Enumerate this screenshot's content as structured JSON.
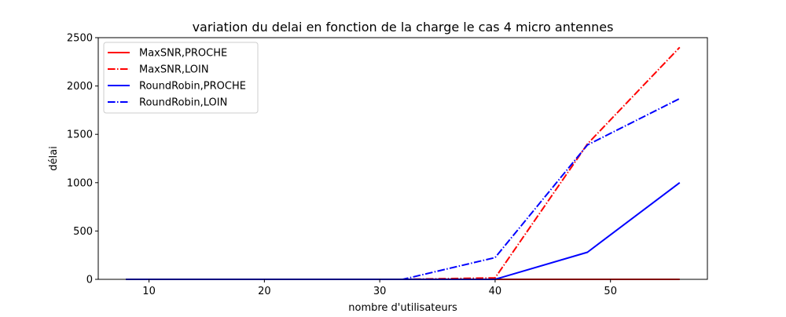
{
  "chart_data": {
    "type": "line",
    "title": "variation du delai en fonction de la charge le cas 4 micro antennes",
    "xlabel": "nombre d'utilisateurs",
    "ylabel": "délai",
    "xlim": [
      5.6,
      58.4
    ],
    "ylim": [
      0,
      2500
    ],
    "xticks": [
      "10",
      "20",
      "30",
      "40",
      "50"
    ],
    "yticks": [
      "0",
      "500",
      "1000",
      "1500",
      "2000",
      "2500"
    ],
    "grid": false,
    "legend_position": "upper-left",
    "series": [
      {
        "name": "MaxSNR,PROCHE",
        "color": "#ff0000",
        "linestyle": "solid",
        "x": [
          8,
          16,
          24,
          32,
          40,
          48,
          56
        ],
        "y": [
          0,
          0,
          0,
          0,
          0,
          0,
          0
        ]
      },
      {
        "name": "MaxSNR,LOIN",
        "color": "#ff0000",
        "linestyle": "dashdot",
        "x": [
          8,
          16,
          24,
          32,
          40,
          48,
          56
        ],
        "y": [
          0,
          0,
          0,
          0,
          15,
          1400,
          2400
        ]
      },
      {
        "name": "RoundRobin,PROCHE",
        "color": "#0000ff",
        "linestyle": "solid",
        "x": [
          8,
          16,
          24,
          32,
          40,
          48,
          56
        ],
        "y": [
          0,
          0,
          0,
          0,
          0,
          280,
          1000
        ]
      },
      {
        "name": "RoundRobin,LOIN",
        "color": "#0000ff",
        "linestyle": "dashdot",
        "x": [
          8,
          16,
          24,
          32,
          40,
          48,
          56
        ],
        "y": [
          0,
          0,
          0,
          0,
          225,
          1390,
          1870
        ]
      }
    ]
  }
}
